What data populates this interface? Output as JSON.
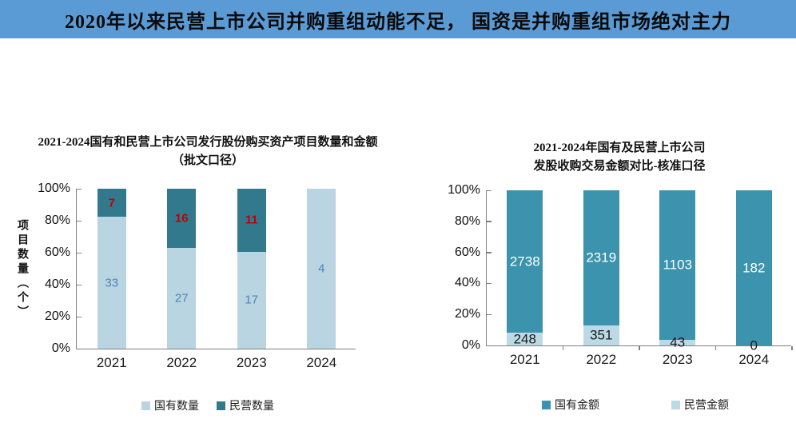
{
  "header": {
    "title": "2020年以来民营上市公司并购重组动能不足， 国资是并购重组市场绝对主力",
    "bg_color": "#5b9bd5"
  },
  "chart_data": [
    {
      "type": "bar",
      "stacked": true,
      "normalized": "percent",
      "title_lines": [
        "2021-2024国有和民营上市公司发行股份购买资产项目数量和金额",
        "（批文口径）"
      ],
      "ylabel": "项目数量（个）",
      "xlabel": "",
      "categories": [
        "2021",
        "2022",
        "2023",
        "2024"
      ],
      "series": [
        {
          "name": "国有数量",
          "color": "#b9d5e2",
          "values": [
            33,
            27,
            17,
            4
          ],
          "label_color": "#4f81bd",
          "label_bold": false,
          "show_zero_label": false
        },
        {
          "name": "民营数量",
          "color": "#33798e",
          "values": [
            7,
            16,
            11,
            0
          ],
          "label_color": "#c00000",
          "label_bold": true,
          "show_zero_label": false
        }
      ],
      "yticks": [
        "0%",
        "20%",
        "40%",
        "60%",
        "80%",
        "100%"
      ],
      "ylim": [
        0,
        100
      ],
      "grid": false,
      "legend_position": "bottom",
      "legend": [
        {
          "label": "国有数量",
          "color": "#b9d5e2"
        },
        {
          "label": "民营数量",
          "color": "#33798e"
        }
      ]
    },
    {
      "type": "bar",
      "stacked": true,
      "normalized": "percent",
      "title_lines": [
        "2021-2024年国有及民营上市公司",
        "发股收购交易金额对比-核准口径"
      ],
      "ylabel": "",
      "xlabel": "",
      "categories": [
        "2021",
        "2022",
        "2023",
        "2024"
      ],
      "series": [
        {
          "name": "民营金额",
          "color": "#bcd9e6",
          "values": [
            248,
            351,
            43,
            0
          ],
          "label_color": "#1a1a1a",
          "label_bold": false,
          "show_zero_label": true
        },
        {
          "name": "国有金额",
          "color": "#3b93ad",
          "values": [
            2738,
            2319,
            1103,
            182
          ],
          "label_color": "#ffffff",
          "label_bold": false,
          "show_zero_label": true
        }
      ],
      "yticks": [
        "0%",
        "20%",
        "40%",
        "60%",
        "80%",
        "100%"
      ],
      "ylim": [
        0,
        100
      ],
      "grid": false,
      "legend_position": "bottom",
      "legend": [
        {
          "label": "国有金额",
          "color": "#3b93ad"
        },
        {
          "label": "民营金额",
          "color": "#bcd9e6"
        }
      ]
    }
  ],
  "colors": {
    "header_bg": "#5b9bd5",
    "axis": "#808080",
    "light_blue_left": "#b9d5e2",
    "dark_teal_left": "#33798e",
    "light_blue_right": "#bcd9e6",
    "dark_teal_right": "#3b93ad",
    "red_label": "#c00000",
    "blue_label": "#4f81bd"
  }
}
